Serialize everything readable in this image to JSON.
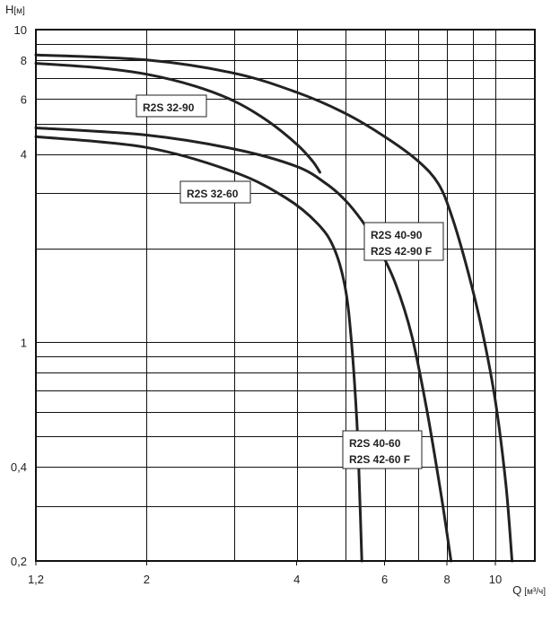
{
  "chart_data": {
    "type": "line",
    "title": "",
    "xscale": "log",
    "yscale": "log",
    "xlim": [
      1.2,
      12
    ],
    "ylim": [
      0.2,
      10
    ],
    "grid": true,
    "xlabel": {
      "letter": "Q",
      "unit": "[м³/ч]"
    },
    "ylabel": {
      "letter": "H",
      "unit": "[м]"
    },
    "x_ticks": [
      {
        "value": 1.2,
        "label": "1,2"
      },
      {
        "value": 2,
        "label": "2"
      },
      {
        "value": 4,
        "label": "4"
      },
      {
        "value": 6,
        "label": "6"
      },
      {
        "value": 8,
        "label": "8"
      },
      {
        "value": 10,
        "label": "10"
      }
    ],
    "x_grid": [
      2,
      3,
      4,
      5,
      6,
      7,
      8,
      9,
      10
    ],
    "y_ticks": [
      {
        "value": 0.2,
        "label": "0,2"
      },
      {
        "value": 0.4,
        "label": "0,4"
      },
      {
        "value": 1,
        "label": "1"
      },
      {
        "value": 4,
        "label": "4"
      },
      {
        "value": 6,
        "label": "6"
      },
      {
        "value": 8,
        "label": "8"
      },
      {
        "value": 10,
        "label": "10"
      }
    ],
    "y_grid": [
      0.3,
      0.4,
      0.5,
      0.6,
      0.7,
      0.8,
      0.9,
      1,
      2,
      3,
      4,
      5,
      6,
      7,
      8,
      9
    ],
    "series": [
      {
        "name": "R2S 32-90",
        "labels": [
          "R2S 32-90"
        ],
        "points": [
          [
            1.2,
            7.8
          ],
          [
            1.6,
            7.55
          ],
          [
            2,
            7.2
          ],
          [
            2.5,
            6.6
          ],
          [
            3,
            5.9
          ],
          [
            3.5,
            5.1
          ],
          [
            4,
            4.3
          ],
          [
            4.3,
            3.8
          ],
          [
            4.45,
            3.5
          ]
        ]
      },
      {
        "name": "R2S 40-90 / R2S 42-90 F",
        "labels": [
          "R2S 40-90",
          "R2S 42-90 F"
        ],
        "points": [
          [
            1.2,
            8.3
          ],
          [
            2,
            8.0
          ],
          [
            3,
            7.25
          ],
          [
            4,
            6.3
          ],
          [
            5,
            5.4
          ],
          [
            6,
            4.55
          ],
          [
            7,
            3.8
          ],
          [
            7.7,
            3.2
          ],
          [
            8.2,
            2.5
          ],
          [
            8.8,
            1.7
          ],
          [
            9.4,
            1.1
          ],
          [
            10,
            0.65
          ],
          [
            10.5,
            0.35
          ],
          [
            10.8,
            0.2
          ]
        ]
      },
      {
        "name": "R2S 40-60 / R2S 42-60 F",
        "labels": [
          "R2S 40-60",
          "R2S 42-60 F"
        ],
        "points": [
          [
            1.2,
            4.85
          ],
          [
            2,
            4.6
          ],
          [
            3,
            4.15
          ],
          [
            4,
            3.65
          ],
          [
            4.6,
            3.2
          ],
          [
            5,
            2.85
          ],
          [
            5.4,
            2.45
          ],
          [
            5.8,
            2.05
          ],
          [
            6.3,
            1.55
          ],
          [
            6.8,
            1.05
          ],
          [
            7.3,
            0.6
          ],
          [
            7.8,
            0.32
          ],
          [
            8.15,
            0.2
          ]
        ]
      },
      {
        "name": "R2S 32-60",
        "labels": [
          "R2S 32-60"
        ],
        "points": [
          [
            1.2,
            4.55
          ],
          [
            2,
            4.2
          ],
          [
            3,
            3.5
          ],
          [
            3.8,
            2.9
          ],
          [
            4.4,
            2.4
          ],
          [
            4.75,
            2.0
          ],
          [
            5.0,
            1.5
          ],
          [
            5.15,
            1.0
          ],
          [
            5.28,
            0.55
          ],
          [
            5.35,
            0.32
          ],
          [
            5.4,
            0.2
          ]
        ]
      }
    ]
  }
}
